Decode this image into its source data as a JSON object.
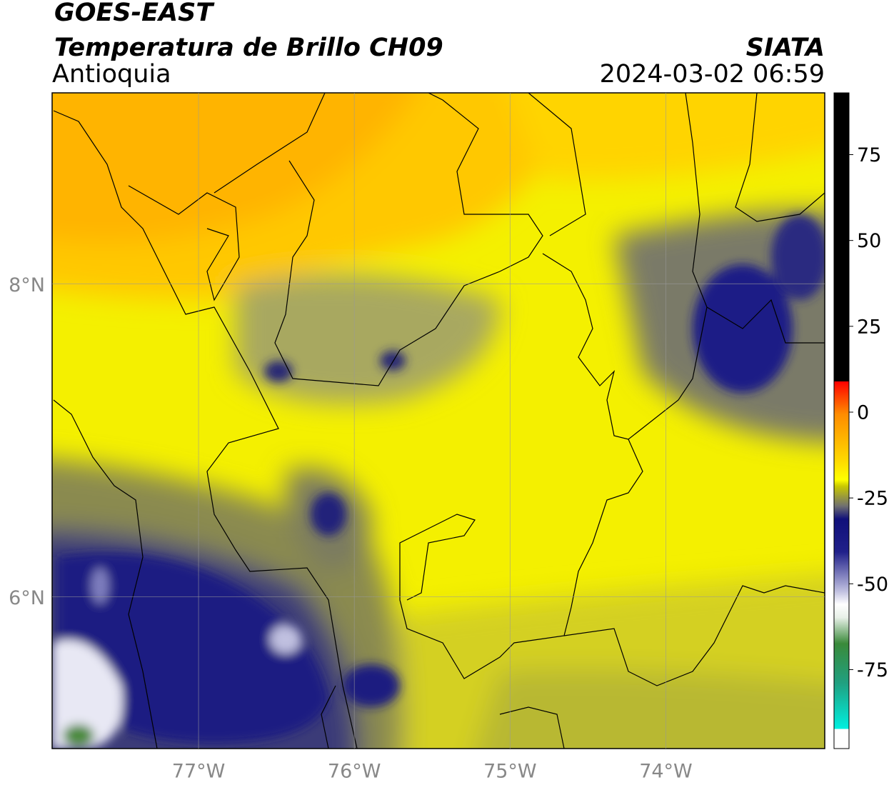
{
  "header": {
    "title": "GOES-EAST",
    "subtitle": "Temperatura de Brillo CH09",
    "region": "Antioquia",
    "source": "SIATA",
    "timestamp": "2024-03-02 06:59"
  },
  "map": {
    "lonlim": [
      -77.94,
      -72.98
    ],
    "latlim": [
      5.03,
      9.22
    ],
    "lon_ticks": [
      {
        "value": -77,
        "label": "77°W"
      },
      {
        "value": -76,
        "label": "76°W"
      },
      {
        "value": -75,
        "label": "75°W"
      },
      {
        "value": -74,
        "label": "74°W"
      }
    ],
    "lat_ticks": [
      {
        "value": 8,
        "label": "8°N"
      },
      {
        "value": 6,
        "label": "6°N"
      }
    ]
  },
  "colorbar": {
    "lim": [
      -98,
      93
    ],
    "ticks": [
      75,
      50,
      25,
      0,
      -25,
      -50,
      -75
    ]
  }
}
